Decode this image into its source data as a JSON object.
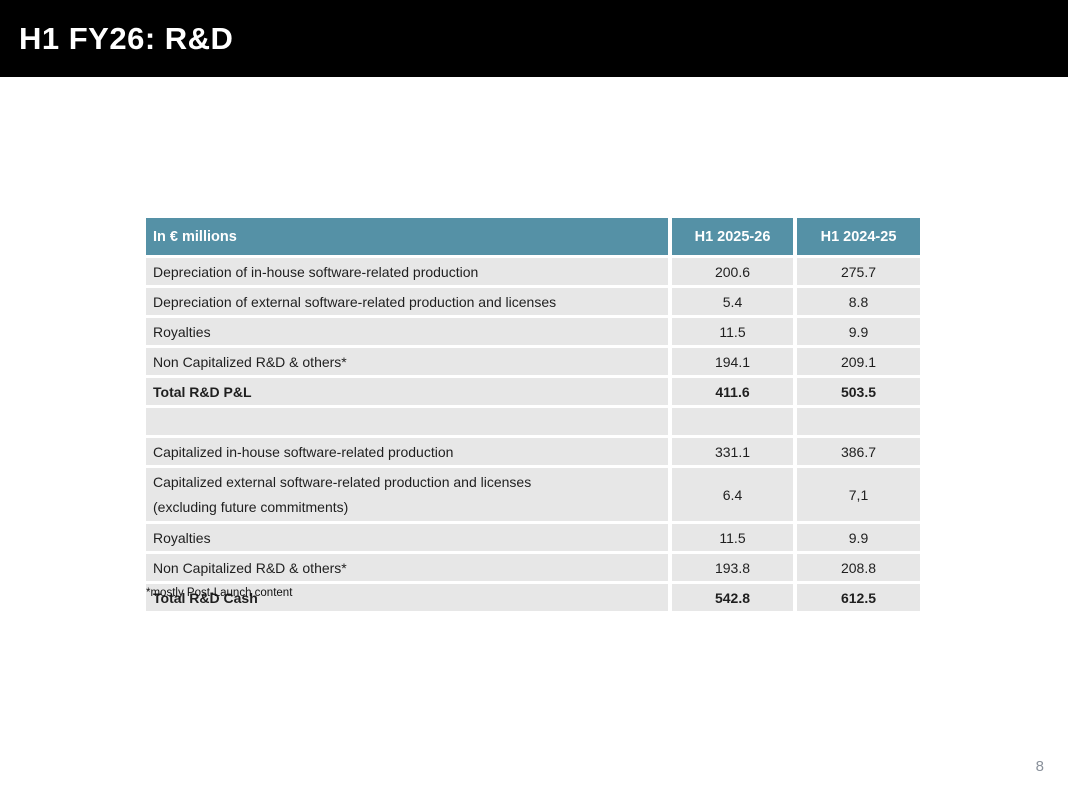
{
  "slide": {
    "title": "H1 FY26: R&D",
    "footnote": "*mostly Post-Launch content",
    "page_number": "8"
  },
  "colors": {
    "title_bar_bg": "#000000",
    "table_header_bg": "#5591a6",
    "row_bg": "#e7e7e7",
    "body_text": "#1f1f1f",
    "page_number_text": "#8a919b"
  },
  "table": {
    "columns": [
      "In € millions",
      "H1 2025-26",
      "H1 2024-25"
    ],
    "rows": [
      {
        "label": "Depreciation of in-house software-related production",
        "h1_2025_26": "200.6",
        "h1_2024_25": "275.7"
      },
      {
        "label": "Depreciation of external software-related production and licenses",
        "h1_2025_26": "5.4",
        "h1_2024_25": "8.8"
      },
      {
        "label": "Royalties",
        "h1_2025_26": "11.5",
        "h1_2024_25": "9.9"
      },
      {
        "label": "Non Capitalized R&D & others*",
        "h1_2025_26": "194.1",
        "h1_2024_25": "209.1"
      },
      {
        "label": "Total R&D P&L",
        "h1_2025_26": "411.6",
        "h1_2024_25": "503.5"
      },
      {
        "label": "",
        "h1_2025_26": "",
        "h1_2024_25": ""
      },
      {
        "label": "Capitalized in-house software-related production",
        "h1_2025_26": "331.1",
        "h1_2024_25": "386.7"
      },
      {
        "label": "Capitalized external software-related production and licenses",
        "label_line2": "(excluding future commitments)",
        "h1_2025_26": "6.4",
        "h1_2024_25": "7,1"
      },
      {
        "label": "Royalties",
        "h1_2025_26": "11.5",
        "h1_2024_25": "9.9"
      },
      {
        "label": "Non Capitalized R&D & others*",
        "h1_2025_26": "193.8",
        "h1_2024_25": "208.8"
      },
      {
        "label": "Total R&D Cash",
        "h1_2025_26": "542.8",
        "h1_2024_25": "612.5"
      }
    ]
  }
}
